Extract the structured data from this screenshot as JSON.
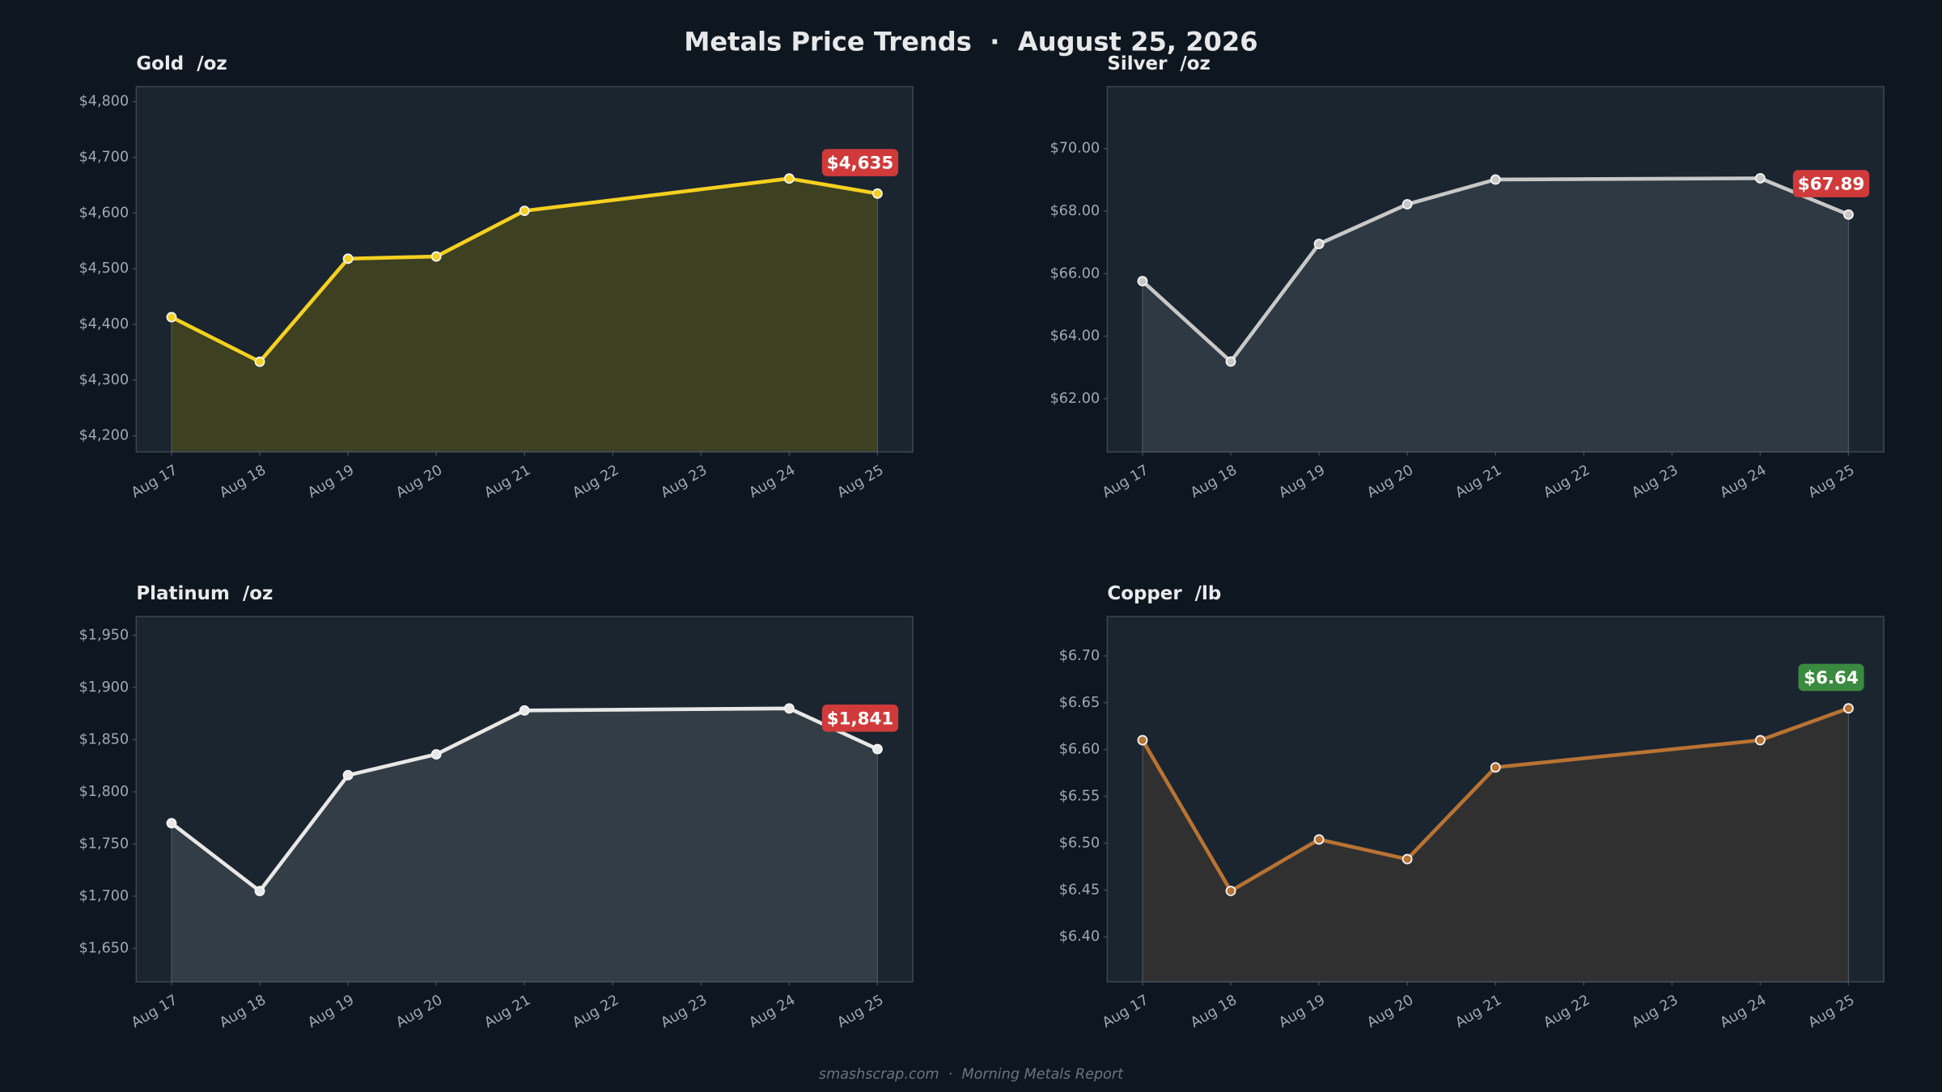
{
  "title": "Metals Price Trends  ·  August 25, 2026",
  "footer": "smashscrap.com  ·  Morning Metals Report",
  "chart_data": [
    {
      "type": "line",
      "title": "Gold  /oz",
      "xticks": [
        "Aug 17",
        "Aug 18",
        "Aug 19",
        "Aug 20",
        "Aug 21",
        "Aug 22",
        "Aug 23",
        "Aug 24",
        "Aug 25"
      ],
      "x": [
        "Aug 17",
        "Aug 18",
        "Aug 19",
        "Aug 20",
        "Aug 21",
        "Aug 24",
        "Aug 25"
      ],
      "values": [
        4413,
        4333,
        4518,
        4522,
        4604,
        4662,
        4635
      ],
      "value_labels": [
        null,
        null,
        null,
        null,
        null,
        null,
        "$4,635"
      ],
      "label_color": "#d03a3a",
      "color": "#f5d020",
      "fill_color": "#4a4a1c",
      "ylim": [
        4171,
        4827
      ],
      "yticks": [
        {
          "value": 4200,
          "label": "$4,200"
        },
        {
          "value": 4300,
          "label": "$4,300"
        },
        {
          "value": 4400,
          "label": "$4,400"
        },
        {
          "value": 4500,
          "label": "$4,500"
        },
        {
          "value": 4600,
          "label": "$4,600"
        },
        {
          "value": 4700,
          "label": "$4,700"
        },
        {
          "value": 4800,
          "label": "$4,800"
        }
      ]
    },
    {
      "type": "line",
      "title": "Silver  /oz",
      "xticks": [
        "Aug 17",
        "Aug 18",
        "Aug 19",
        "Aug 20",
        "Aug 21",
        "Aug 22",
        "Aug 23",
        "Aug 24",
        "Aug 25"
      ],
      "x": [
        "Aug 17",
        "Aug 18",
        "Aug 19",
        "Aug 20",
        "Aug 21",
        "Aug 24",
        "Aug 25"
      ],
      "values": [
        65.76,
        63.19,
        66.95,
        68.22,
        69.01,
        69.05,
        67.89
      ],
      "value_labels": [
        null,
        null,
        null,
        null,
        null,
        null,
        "$67.89"
      ],
      "label_color": "#d03a3a",
      "color": "#c8c8c8",
      "fill_color": "#36404a",
      "ylim": [
        60.3,
        71.98
      ],
      "yticks": [
        {
          "value": 62,
          "label": "$62.00"
        },
        {
          "value": 64,
          "label": "$64.00"
        },
        {
          "value": 66,
          "label": "$66.00"
        },
        {
          "value": 68,
          "label": "$68.00"
        },
        {
          "value": 70,
          "label": "$70.00"
        }
      ]
    },
    {
      "type": "line",
      "title": "Platinum  /oz",
      "xticks": [
        "Aug 17",
        "Aug 18",
        "Aug 19",
        "Aug 20",
        "Aug 21",
        "Aug 22",
        "Aug 23",
        "Aug 24",
        "Aug 25"
      ],
      "x": [
        "Aug 17",
        "Aug 18",
        "Aug 19",
        "Aug 20",
        "Aug 21",
        "Aug 24",
        "Aug 25"
      ],
      "values": [
        1770,
        1705,
        1816,
        1836,
        1878,
        1880,
        1841
      ],
      "value_labels": [
        null,
        null,
        null,
        null,
        null,
        null,
        "$1,841"
      ],
      "label_color": "#d03a3a",
      "color": "#e8e8e8",
      "fill_color": "#3c454e",
      "ylim": [
        1618,
        1968
      ],
      "yticks": [
        {
          "value": 1650,
          "label": "$1,650"
        },
        {
          "value": 1700,
          "label": "$1,700"
        },
        {
          "value": 1750,
          "label": "$1,750"
        },
        {
          "value": 1800,
          "label": "$1,800"
        },
        {
          "value": 1850,
          "label": "$1,850"
        },
        {
          "value": 1900,
          "label": "$1,900"
        },
        {
          "value": 1950,
          "label": "$1,950"
        }
      ]
    },
    {
      "type": "line",
      "title": "Copper  /lb",
      "xticks": [
        "Aug 17",
        "Aug 18",
        "Aug 19",
        "Aug 20",
        "Aug 21",
        "Aug 22",
        "Aug 23",
        "Aug 24",
        "Aug 25"
      ],
      "x": [
        "Aug 17",
        "Aug 18",
        "Aug 19",
        "Aug 20",
        "Aug 21",
        "Aug 24",
        "Aug 25"
      ],
      "values": [
        6.61,
        6.449,
        6.504,
        6.483,
        6.581,
        6.61,
        6.644
      ],
      "value_labels": [
        null,
        null,
        null,
        null,
        null,
        null,
        "$6.64"
      ],
      "label_color": "#3a8a3f",
      "color": "#b87333",
      "fill_color": "#3a3430",
      "ylim": [
        6.352,
        6.742
      ],
      "yticks": [
        {
          "value": 6.4,
          "label": "$6.40"
        },
        {
          "value": 6.45,
          "label": "$6.45"
        },
        {
          "value": 6.5,
          "label": "$6.50"
        },
        {
          "value": 6.55,
          "label": "$6.55"
        },
        {
          "value": 6.6,
          "label": "$6.60"
        },
        {
          "value": 6.65,
          "label": "$6.65"
        },
        {
          "value": 6.7,
          "label": "$6.70"
        }
      ]
    }
  ]
}
